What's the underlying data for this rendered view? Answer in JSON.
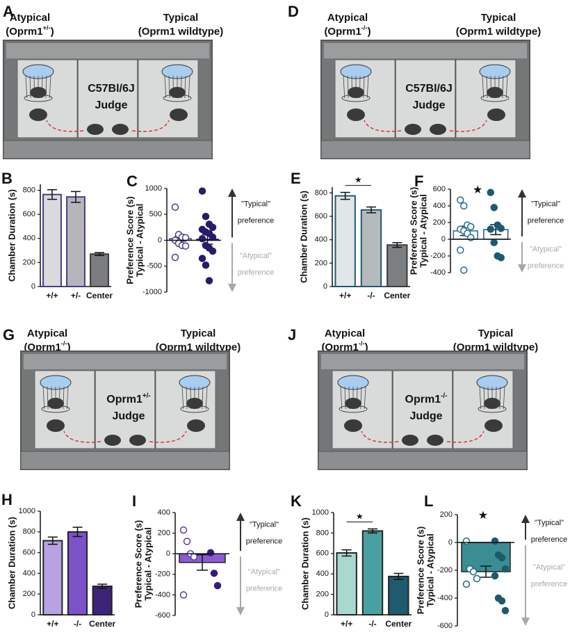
{
  "diagrams": [
    {
      "label": "A",
      "atypical": "Atypical",
      "atypical_strain": {
        "text": "(Oprm1",
        "superscript": "+/-",
        "end": ")"
      },
      "typical": "Typical",
      "typical_strain": "(Oprm1 wildtype)",
      "judge_strain": "C57Bl/6J",
      "judge": "Judge"
    },
    {
      "label": "D",
      "atypical": "Atypical",
      "atypical_strain": {
        "text": "(Oprm1",
        "superscript": "-/-",
        "end": ")"
      },
      "typical": "Typical",
      "typical_strain": "(Oprm1 wildtype)",
      "judge_strain": "C57Bl/6J",
      "judge": "Judge"
    },
    {
      "label": "G",
      "atypical": "Atypical",
      "atypical_strain": {
        "text": "(Oprm1",
        "superscript": "-/-",
        "end": ")"
      },
      "typical": "Typical",
      "typical_strain": "(Oprm1 wildtype)",
      "judge_strain": {
        "text": "Oprm1",
        "superscript": "+/-"
      },
      "judge": "Judge"
    },
    {
      "label": "J",
      "atypical": "Atypical",
      "atypical_strain": {
        "text": "(Oprm1",
        "superscript": "-/-",
        "end": ")"
      },
      "typical": "Typical",
      "typical_strain": "(Oprm1 wildtype)",
      "judge_strain": {
        "text": "Oprm1",
        "superscript": "-/-"
      },
      "judge": "Judge"
    }
  ],
  "chart_data": [
    {
      "type": "bar",
      "label": "B",
      "ylabel": [
        "Chamber Duration (s)"
      ],
      "categories": [
        "+/+",
        "+/-",
        "Center"
      ],
      "values": [
        765,
        745,
        270
      ],
      "errors": [
        40,
        45,
        12
      ],
      "colors": [
        "#d9dadb",
        "#b4b6b9",
        "#7b7d80"
      ],
      "edge_colors": [
        "#4a3a8a",
        "#4a3a8a",
        "#3a3a3a"
      ],
      "ylim": [
        0,
        850
      ],
      "yticks": [
        0,
        200,
        400,
        600,
        800
      ]
    },
    {
      "type": "strip",
      "label": "C",
      "ylabel": [
        "Preference Score (s)",
        "Typical - Atypical"
      ],
      "ylim": [
        -1000,
        1000
      ],
      "yticks": [
        -1000,
        -500,
        0,
        500,
        1000
      ],
      "annotations": [
        "\"Typical\"",
        "preference",
        "\"Atypical\"",
        "preference"
      ],
      "series": [
        {
          "color": "#4a3a8a",
          "filled": false,
          "values": [
            640,
            110,
            60,
            50,
            0,
            -60,
            -100,
            -110,
            -330
          ],
          "mean": 30,
          "error": 45
        },
        {
          "color": "#2a1a6a",
          "filled": true,
          "values": [
            950,
            460,
            310,
            250,
            210,
            160,
            130,
            60,
            30,
            -100,
            -150,
            -210,
            -350,
            -480,
            -780
          ],
          "mean": 20,
          "error": 95
        }
      ]
    },
    {
      "type": "bar",
      "label": "E",
      "ylabel": [
        "Chamber Duration (s)"
      ],
      "categories": [
        "+/+",
        "-/-",
        "Center"
      ],
      "values": [
        775,
        655,
        355
      ],
      "errors": [
        30,
        25,
        20
      ],
      "colors": [
        "#e2e6e8",
        "#b5babd",
        "#7b7f81"
      ],
      "edge_colors": [
        "#1e5a72",
        "#1e5a72",
        "#3a3a3a"
      ],
      "ylim": [
        0,
        850
      ],
      "yticks": [
        0,
        200,
        400,
        600,
        800
      ],
      "significance": "★"
    },
    {
      "type": "strip",
      "label": "F",
      "ylabel": [
        "Preference Score (s)",
        "Typical - Atypical"
      ],
      "ylim": [
        -400,
        600
      ],
      "yticks": [
        -400,
        -200,
        0,
        200,
        400,
        600
      ],
      "annotations": [
        "\"Typical\"",
        "preference",
        "\"Atypical\"",
        "preference"
      ],
      "significance": "★",
      "series": [
        {
          "color": "#1f6e8c",
          "filled": false,
          "values": [
            470,
            400,
            170,
            150,
            120,
            100,
            70,
            20,
            -130,
            -370
          ],
          "mean": 100,
          "error": 55
        },
        {
          "color": "#1a5a73",
          "filled": true,
          "values": [
            560,
            380,
            170,
            130,
            120,
            -40,
            -200,
            -220
          ],
          "mean": 115,
          "error": 60
        }
      ]
    },
    {
      "type": "bar",
      "label": "H",
      "ylabel": [
        "Chamber Duration (s)"
      ],
      "categories": [
        "+/+",
        "-/-",
        "Center"
      ],
      "values": [
        715,
        800,
        275
      ],
      "errors": [
        35,
        45,
        20
      ],
      "colors": [
        "#b8a2e2",
        "#7c52c8",
        "#3e2478"
      ],
      "edge_colors": [
        "#222222",
        "#222222",
        "#222222"
      ],
      "ylim": [
        0,
        1000
      ],
      "yticks": [
        0,
        200,
        400,
        600,
        800,
        1000
      ]
    },
    {
      "type": "strip",
      "label": "I",
      "ylabel": [
        "Preference Score (s)",
        "Typical - Atypical"
      ],
      "ylim": [
        -600,
        400
      ],
      "yticks": [
        -600,
        -400,
        -200,
        0,
        200,
        400
      ],
      "annotations": [
        "\"Typical\"",
        "preference",
        "\"Atypical\"",
        "preference"
      ],
      "mean": -85,
      "error": 75,
      "bar_color": "#8a5bd2",
      "series": [
        {
          "color": "#5a3aa0",
          "filled": false,
          "values": [
            230,
            120,
            0,
            -30,
            -400
          ]
        },
        {
          "color": "#3a1a7a",
          "filled": true,
          "values": [
            10,
            -190,
            -310
          ]
        }
      ]
    },
    {
      "type": "bar",
      "label": "K",
      "ylabel": [
        "Chamber Duration (s)"
      ],
      "categories": [
        "+/+",
        "-/-",
        "Center"
      ],
      "values": [
        605,
        820,
        375
      ],
      "errors": [
        30,
        20,
        30
      ],
      "colors": [
        "#a9d8d0",
        "#4aa0a1",
        "#1d5b6d"
      ],
      "edge_colors": [
        "#222222",
        "#222222",
        "#222222"
      ],
      "ylim": [
        0,
        1000
      ],
      "yticks": [
        0,
        200,
        400,
        600,
        800,
        1000
      ],
      "significance": "★"
    },
    {
      "type": "strip",
      "label": "L",
      "ylabel": [
        "Preference Score (s)",
        "Typical - Atypical"
      ],
      "ylim": [
        -600,
        200
      ],
      "yticks": [
        -600,
        -400,
        -200,
        0,
        200
      ],
      "annotations": [
        "\"Typical\"",
        "preference",
        "\"Atypical\"",
        "preference"
      ],
      "mean": -210,
      "error": 40,
      "bar_color": "#3a8d93",
      "significance": "★",
      "series": [
        {
          "color": "#1d6a7a",
          "filled": false,
          "values": [
            10,
            -190,
            -210,
            -260,
            -300
          ]
        },
        {
          "color": "#1d5a6a",
          "filled": true,
          "values": [
            10,
            -90,
            -110,
            -190,
            -240,
            -400,
            -420,
            -490
          ]
        }
      ]
    }
  ]
}
